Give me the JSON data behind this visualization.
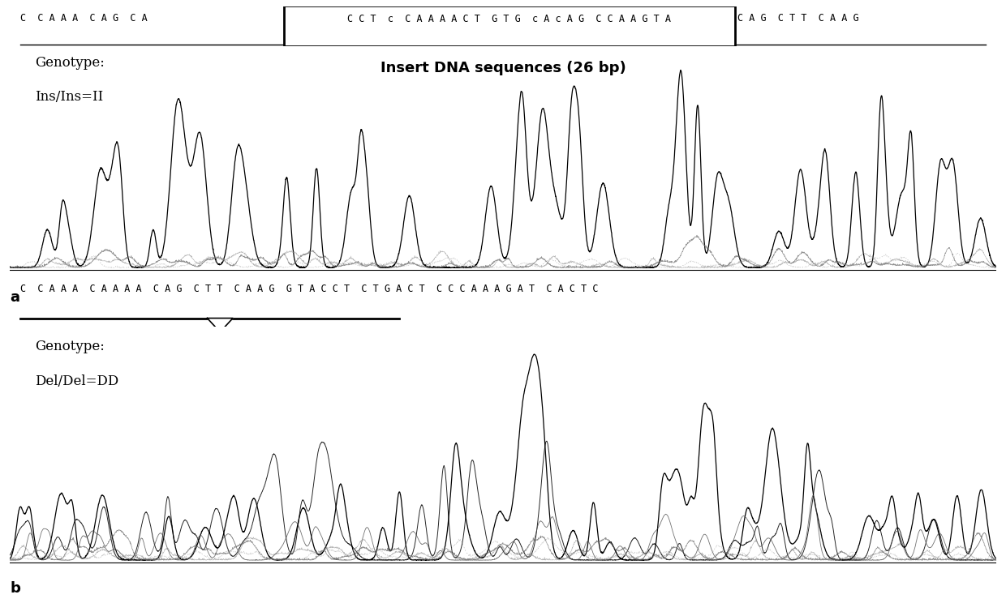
{
  "title_a": "Insert DNA sequences (26 bp)",
  "seq_top_left": "C  C A A A  C A G  C A",
  "seq_top_mid": "C C T  c  C A A A A C T  G T G  c A c A G  C C A A G T A",
  "seq_top_right": "C A G  C T T  C A A G",
  "seq_bot": "C  C A A A  C A A A A  C A G  C T T  C A A G  G T A C C T  C T G A C T  C C C A A A G A T  C A C T C",
  "label_a_genotype": "Genotype:",
  "label_a_type": "Ins/Ins=II",
  "label_b_genotype": "Genotype:",
  "label_b_type": "Del/Del=DD",
  "label_a": "a",
  "label_b": "b",
  "bg_color": "#ffffff",
  "line_color": "#000000",
  "seq_fontsize": 8.5,
  "genotype_fontsize": 12,
  "title_fontsize": 13
}
